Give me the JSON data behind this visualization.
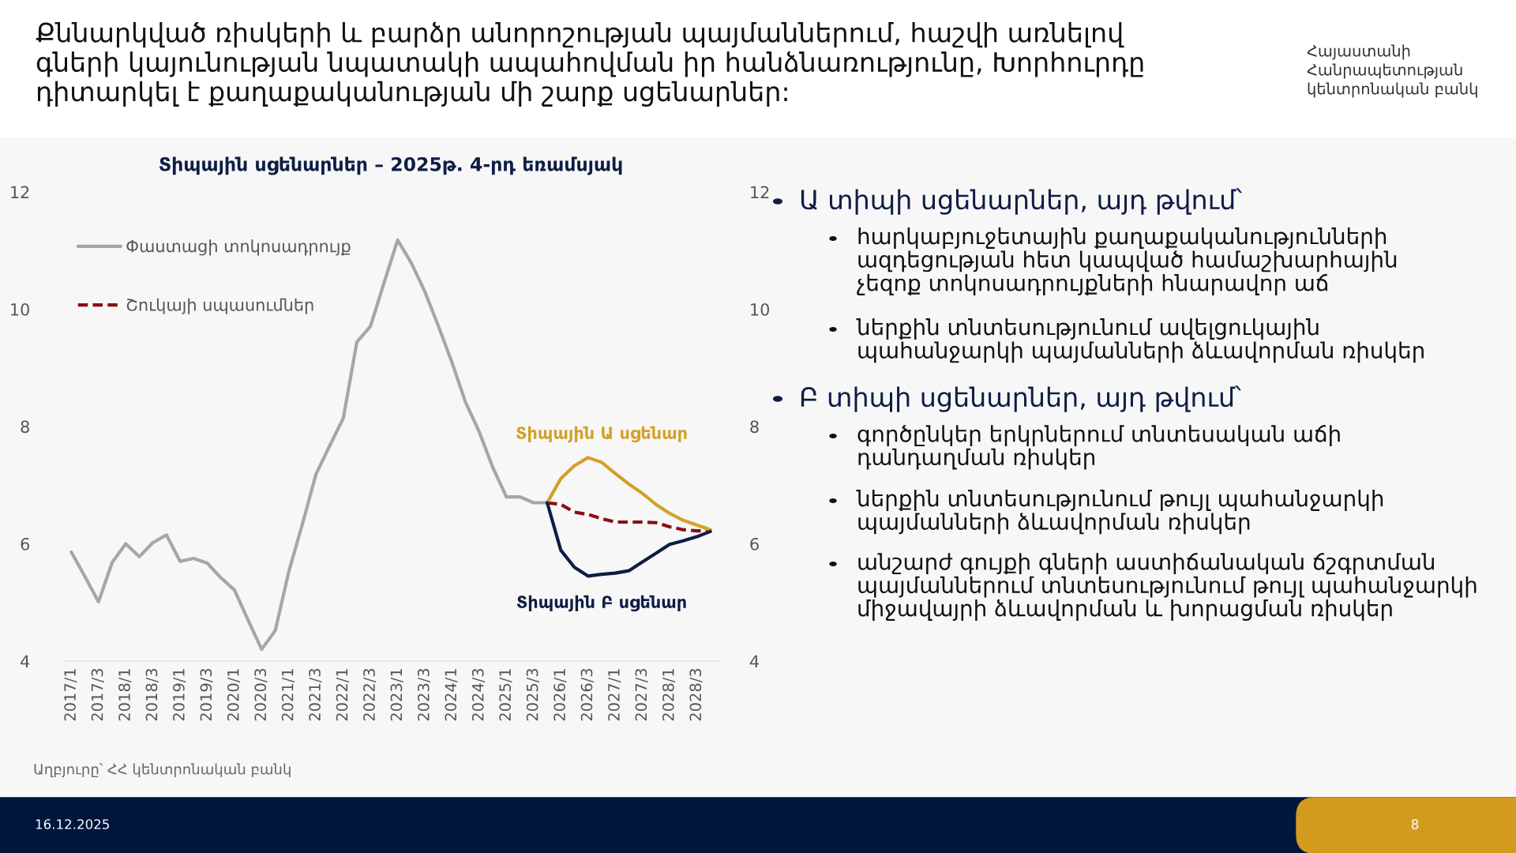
{
  "chart_data": {
    "type": "line",
    "title": "Քննարկված ռիսկերի և բարձր անորոշության պայմաններում, հաշվի առնելով\nգների կայունության նպատակի ապահովման իր հանձնառությունը, Խորհուրդը\nդիտարկել է քաղաքականության մի շարք սցենարներ:",
    "subtitle": "Տիպային սցենարներ – 2025թ. 4-րդ եռամսյակ",
    "categories": [
      "2017/1",
      null,
      "2017/3",
      null,
      "2018/1",
      null,
      "2018/3",
      null,
      "2019/1",
      null,
      "2019/3",
      null,
      "2020/1",
      null,
      "2020/3",
      null,
      "2021/1",
      null,
      "2021/3",
      null,
      "2022/1",
      null,
      "2022/3",
      null,
      "2023/1",
      null,
      "2023/3",
      null,
      "2024/1",
      null,
      "2024/3",
      null,
      "2025/1",
      null,
      "2025/3",
      null,
      "2026/1",
      null,
      "2026/3",
      null,
      "2027/1",
      null,
      "2027/3",
      null,
      "2028/1",
      null,
      "2028/3",
      null
    ],
    "series": [
      {
        "name": "Փաստացի տոկոսադրույք",
        "color": "#a6a6a6",
        "line_style": "solid",
        "values": [
          5.86,
          5.44,
          5.01,
          5.68,
          6.0,
          5.78,
          6.02,
          6.15,
          5.7,
          5.75,
          5.67,
          5.42,
          5.21,
          4.7,
          4.2,
          4.52,
          5.53,
          6.34,
          7.19,
          7.67,
          8.14,
          9.44,
          9.71,
          10.45,
          11.18,
          10.79,
          10.3,
          9.71,
          9.09,
          8.41,
          7.91,
          7.3,
          6.8,
          6.8,
          6.7,
          6.7,
          null,
          null,
          null,
          null,
          null,
          null,
          null,
          null,
          null,
          null,
          null,
          null
        ]
      },
      {
        "name": "Շուկայի սպասումներ",
        "color": "#8b0d14",
        "line_style": "dashed",
        "values": [
          null,
          null,
          null,
          null,
          null,
          null,
          null,
          null,
          null,
          null,
          null,
          null,
          null,
          null,
          null,
          null,
          null,
          null,
          null,
          null,
          null,
          null,
          null,
          null,
          null,
          null,
          null,
          null,
          null,
          null,
          null,
          null,
          null,
          null,
          null,
          6.7,
          6.67,
          6.54,
          6.5,
          6.43,
          6.37,
          6.37,
          6.37,
          6.36,
          6.29,
          6.24,
          6.22,
          6.22
        ]
      },
      {
        "color": "#d4a02a",
        "line_style": "solid",
        "values": [
          null,
          null,
          null,
          null,
          null,
          null,
          null,
          null,
          null,
          null,
          null,
          null,
          null,
          null,
          null,
          null,
          null,
          null,
          null,
          null,
          null,
          null,
          null,
          null,
          null,
          null,
          null,
          null,
          null,
          null,
          null,
          null,
          null,
          null,
          null,
          6.7,
          7.11,
          7.33,
          7.47,
          7.39,
          7.2,
          7.02,
          6.86,
          6.67,
          6.52,
          6.4,
          6.32,
          6.24
        ]
      },
      {
        "color": "#0f1d45",
        "line_style": "solid",
        "values": [
          null,
          null,
          null,
          null,
          null,
          null,
          null,
          null,
          null,
          null,
          null,
          null,
          null,
          null,
          null,
          null,
          null,
          null,
          null,
          null,
          null,
          null,
          null,
          null,
          null,
          null,
          null,
          null,
          null,
          null,
          null,
          null,
          null,
          null,
          null,
          6.7,
          5.89,
          5.6,
          5.45,
          5.48,
          5.5,
          5.54,
          5.69,
          5.84,
          5.99,
          6.05,
          6.12,
          6.21
        ]
      }
    ],
    "ylim": [
      4,
      12
    ],
    "yticks": [
      4,
      6,
      8,
      10,
      12
    ],
    "y2lim": [
      4,
      12
    ],
    "y2ticks": [
      4,
      6,
      8,
      10,
      12
    ],
    "grid": false,
    "legend": "top left",
    "marker": "none",
    "annotations": [
      "Տիպային Ա սցենար",
      "Տիպային Բ սցենար",
      "Աղբյուրը՝ ՀՀ կենտրոնական բանկ",
      "16.12.2025",
      "8",
      "Հայաստանի\nՀանրապետության\nկենտրոնական բանկ",
      "Ա տիպի սցենարներ, այդ թվում՝",
      "հարկաբյուջետային քաղաքականությունների\nազդեցության հետ կապված համաշխարհային\nչեզոք տոկոսադրույքների հնարավոր աճ",
      "ներքին տնտեսությունում ավելցուկային\nպահանջարկի պայմանների ձևավորման ռիսկեր",
      "Բ տիպի սցենարներ, այդ թվում՝",
      "գործընկեր երկրներում տնտեսական աճի\nդանդաղման ռիսկեր",
      "ներքին տնտեսությունում թույլ պահանջարկի\nպայմանների ձևավորման ռիսկեր",
      "անշարժ գույքի գների աստիճանական ճշգրտման\nպայմաններում տնտեսությունում թույլ պահանջարկի\nմիջավայրի ձևավորման և խորացման ռիսկեր"
    ]
  }
}
